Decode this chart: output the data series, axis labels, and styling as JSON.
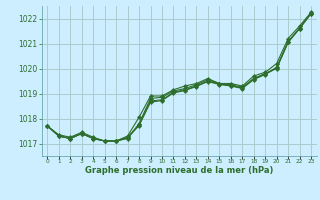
{
  "background_color": "#cceeff",
  "grid_color": "#aacccc",
  "line_color": "#2d6e2d",
  "marker_color": "#2d6e2d",
  "text_color": "#2d6e2d",
  "xlabel": "Graphe pression niveau de la mer (hPa)",
  "xlim": [
    -0.5,
    23.5
  ],
  "ylim": [
    1016.5,
    1022.5
  ],
  "yticks": [
    1017,
    1018,
    1019,
    1020,
    1021,
    1022
  ],
  "xticks": [
    0,
    1,
    2,
    3,
    4,
    5,
    6,
    7,
    8,
    9,
    10,
    11,
    12,
    13,
    14,
    15,
    16,
    17,
    18,
    19,
    20,
    21,
    22,
    23
  ],
  "xtick_labels": [
    "0",
    "1",
    "2",
    "3",
    "4",
    "5",
    "6",
    "7",
    "8",
    "9",
    "10",
    "11",
    "12",
    "13",
    "14",
    "15",
    "16",
    "17",
    "18",
    "19",
    "20",
    "21",
    "22",
    "23"
  ],
  "series": [
    [
      1017.7,
      1017.3,
      1017.2,
      1017.4,
      1017.2,
      1017.1,
      1017.1,
      1017.2,
      1017.8,
      1018.8,
      1018.85,
      1019.1,
      1019.2,
      1019.35,
      1019.55,
      1019.4,
      1019.35,
      1019.25,
      1019.6,
      1019.8,
      1020.0,
      1021.05,
      1021.6,
      1022.2
    ],
    [
      1017.7,
      1017.3,
      1017.2,
      1017.4,
      1017.2,
      1017.1,
      1017.1,
      1017.3,
      1018.05,
      1018.9,
      1018.9,
      1019.15,
      1019.3,
      1019.4,
      1019.6,
      1019.4,
      1019.4,
      1019.3,
      1019.7,
      1019.85,
      1020.2,
      1021.2,
      1021.7,
      1022.25
    ],
    [
      1017.7,
      1017.35,
      1017.25,
      1017.45,
      1017.25,
      1017.1,
      1017.1,
      1017.25,
      1017.75,
      1018.7,
      1018.75,
      1019.05,
      1019.15,
      1019.3,
      1019.5,
      1019.38,
      1019.32,
      1019.22,
      1019.58,
      1019.78,
      1020.05,
      1021.08,
      1021.62,
      1022.22
    ],
    [
      1017.7,
      1017.3,
      1017.2,
      1017.4,
      1017.2,
      1017.1,
      1017.1,
      1017.22,
      1017.72,
      1018.65,
      1018.72,
      1019.02,
      1019.12,
      1019.28,
      1019.48,
      1019.36,
      1019.3,
      1019.2,
      1019.56,
      1019.76,
      1020.02,
      1021.05,
      1021.6,
      1022.2
    ]
  ]
}
